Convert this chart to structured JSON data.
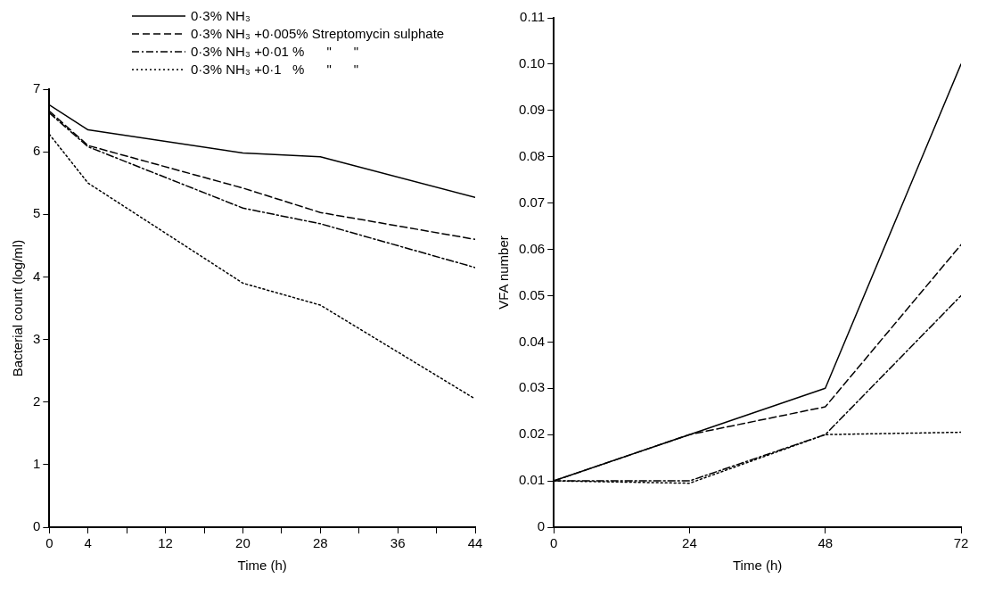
{
  "chart_data": [
    {
      "type": "line",
      "xlabel": "Time (h)",
      "ylabel": "Bacterial count (log/ml)",
      "legend": "top",
      "x": [
        0,
        4,
        20,
        28,
        44
      ],
      "xlim": [
        0,
        44
      ],
      "xticks": [
        0,
        4,
        {
          "value": 8,
          "label": null
        },
        12,
        {
          "value": 16,
          "label": null
        },
        20,
        {
          "value": 24,
          "label": null
        },
        28,
        {
          "value": 32,
          "label": null
        },
        36,
        {
          "value": 40,
          "label": null
        },
        44
      ],
      "ylim": [
        0,
        7
      ],
      "yticks": [
        0,
        1,
        2,
        3,
        4,
        5,
        6,
        7
      ],
      "grid": false,
      "marker": "none",
      "series": [
        {
          "name": "0·3% NH₃",
          "color": "#000000",
          "line_style": "solid",
          "values": [
            6.75,
            6.35,
            5.98,
            5.92,
            5.27
          ]
        },
        {
          "name": "0·3% NH₃ +0·005% Streptomycin sulphate",
          "color": "#000000",
          "line_style": "dashed",
          "values": [
            6.65,
            6.1,
            5.42,
            5.03,
            4.6
          ]
        },
        {
          "name": "0·3% NH₃ +0·01 %      \"      \"",
          "color": "#000000",
          "line_style": "dashdot",
          "values": [
            6.62,
            6.08,
            5.1,
            4.85,
            4.15
          ]
        },
        {
          "name": "0·3% NH₃ +0·1   %      \"      \"",
          "color": "#000000",
          "line_style": "dotted",
          "values": [
            6.28,
            5.5,
            3.9,
            3.55,
            2.05
          ]
        }
      ]
    },
    {
      "type": "line",
      "xlabel": "Time (h)",
      "ylabel": "VFA number",
      "x": [
        0,
        24,
        48,
        72
      ],
      "xlim": [
        0,
        72
      ],
      "xticks": [
        0,
        24,
        48,
        72
      ],
      "ylim": [
        0,
        0.11
      ],
      "yticks": [
        0,
        0.01,
        0.02,
        0.03,
        0.04,
        0.05,
        0.06,
        0.07,
        0.08,
        0.09,
        {
          "value": 0.1,
          "label": "0.10"
        },
        0.11
      ],
      "grid": false,
      "marker": "none",
      "series": [
        {
          "color": "#000000",
          "line_style": "solid",
          "values": [
            0.01,
            0.02,
            0.03,
            0.1
          ]
        },
        {
          "color": "#000000",
          "line_style": "dashed",
          "values": [
            0.01,
            0.02,
            0.026,
            0.061
          ]
        },
        {
          "color": "#000000",
          "line_style": "dashdot",
          "values": [
            0.01,
            0.01,
            0.02,
            0.05
          ]
        },
        {
          "color": "#000000",
          "line_style": "dotted",
          "values": [
            0.01,
            0.0095,
            0.02,
            0.0205
          ]
        }
      ]
    }
  ]
}
